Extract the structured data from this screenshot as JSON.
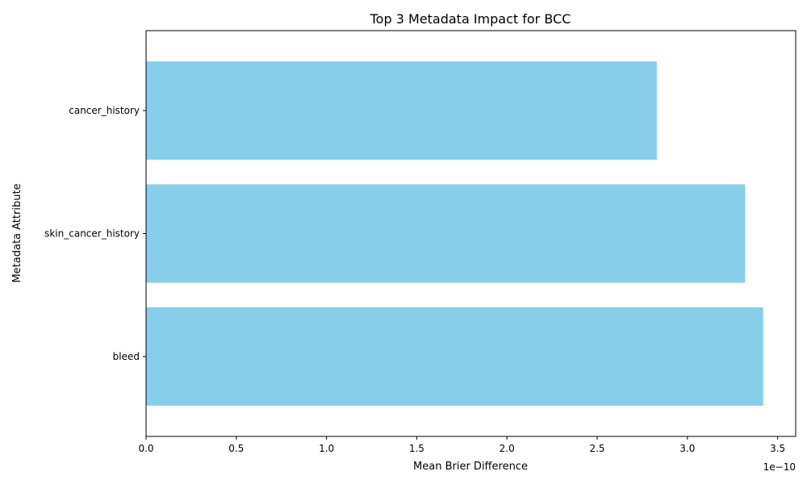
{
  "chart_data": {
    "type": "bar",
    "orientation": "horizontal",
    "title": "Top 3 Metadata Impact for BCC",
    "xlabel": "Mean Brier Difference",
    "ylabel": "Metadata Attribute",
    "x_offset_text": "1e−10",
    "categories": [
      "bleed",
      "skin_cancer_history",
      "cancer_history"
    ],
    "values": [
      3.42,
      3.32,
      2.83
    ],
    "value_scale": "1e-10",
    "xlim": [
      0,
      3.6
    ],
    "xticks": [
      "0.0",
      "0.5",
      "1.0",
      "1.5",
      "2.0",
      "2.5",
      "3.0",
      "3.5"
    ],
    "xtick_values": [
      0,
      0.5,
      1.0,
      1.5,
      2.0,
      2.5,
      3.0,
      3.5
    ],
    "bar_color": "#87CEEB",
    "grid": false,
    "legend": "none"
  }
}
